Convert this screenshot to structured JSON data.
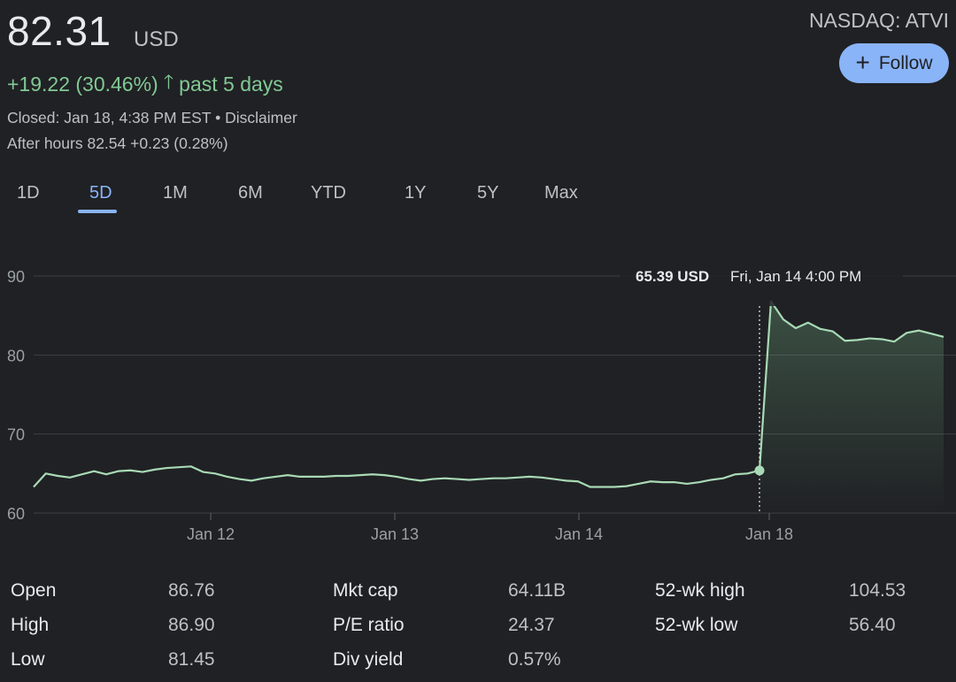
{
  "header": {
    "price": "82.31",
    "currency": "USD",
    "ticker": "NASDAQ: ATVI",
    "follow_label": "Follow",
    "change": "+19.22 (30.46%)",
    "change_period": "past 5 days",
    "closed_text": "Closed: Jan 18, 4:38 PM EST",
    "separator": "•",
    "disclaimer": "Disclaimer",
    "after_hours_prefix": "After hours 82.54",
    "after_hours_change": "+0.23 (0.28%)"
  },
  "icons": {
    "follow": "plus-icon",
    "change": "arrow-up-icon"
  },
  "colors": {
    "background": "#202124",
    "positive": "#81c995",
    "accent": "#8ab4f8",
    "line": "#a8dab5"
  },
  "tabs": [
    "1D",
    "5D",
    "1M",
    "6M",
    "YTD",
    "1Y",
    "5Y",
    "Max"
  ],
  "active_tab": "5D",
  "tooltip": {
    "price": "65.39 USD",
    "time": "Fri, Jan 14 4:00 PM"
  },
  "chart_data": {
    "type": "area",
    "ylim": [
      60,
      90
    ],
    "yticks": [
      "90",
      "80",
      "70",
      "60"
    ],
    "xticks": [
      "Jan 12",
      "Jan 13",
      "Jan 14",
      "Jan 18"
    ],
    "grid": true,
    "series": [
      {
        "values": [
          63.3,
          65.0,
          64.7,
          64.5,
          64.9,
          65.3,
          64.9,
          65.3,
          65.4,
          65.2,
          65.5,
          65.7,
          65.8,
          65.9,
          65.2,
          65.0,
          64.6,
          64.3,
          64.1,
          64.4,
          64.6,
          64.8,
          64.6,
          64.6,
          64.6,
          64.7,
          64.7,
          64.8,
          64.9,
          64.8,
          64.6,
          64.3,
          64.1,
          64.3,
          64.4,
          64.3,
          64.2,
          64.3,
          64.4,
          64.4,
          64.5,
          64.6,
          64.5,
          64.3,
          64.1,
          64.0,
          63.3,
          63.3,
          63.3,
          63.4,
          63.7,
          64.0,
          63.9,
          63.9,
          63.7,
          63.9,
          64.2,
          64.4,
          64.9,
          65.0,
          65.39,
          86.8,
          84.5,
          83.4,
          84.1,
          83.3,
          83.0,
          81.8,
          81.9,
          82.1,
          82.0,
          81.7,
          82.8,
          83.1,
          82.7,
          82.3
        ]
      }
    ]
  },
  "stats": [
    {
      "label": "Open",
      "value": "86.76"
    },
    {
      "label": "High",
      "value": "86.90"
    },
    {
      "label": "Low",
      "value": "81.45"
    },
    {
      "label": "Mkt cap",
      "value": "64.11B"
    },
    {
      "label": "P/E ratio",
      "value": "24.37"
    },
    {
      "label": "Div yield",
      "value": "0.57%"
    },
    {
      "label": "52-wk high",
      "value": "104.53"
    },
    {
      "label": "52-wk low",
      "value": "56.40"
    }
  ]
}
